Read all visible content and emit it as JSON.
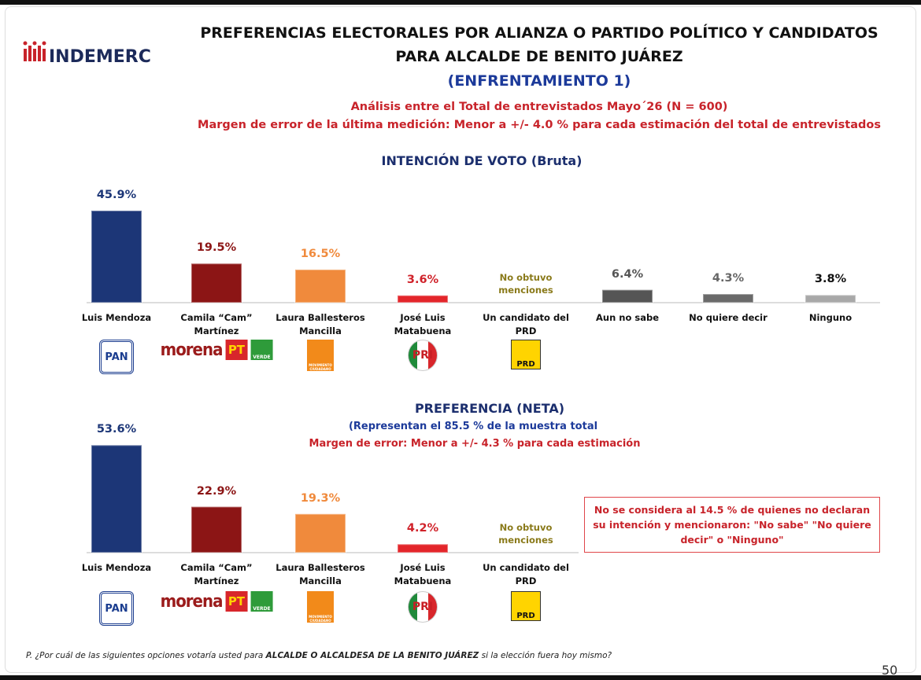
{
  "header": {
    "brand": "INDEMERC",
    "title_line1": "PREFERENCIAS ELECTORALES POR ALIANZA O PARTIDO POLÍTICO Y CANDIDATOS",
    "title_line2": "PARA ALCALDE DE BENITO JUÁREZ",
    "subtitle": "(ENFRENTAMIENTO 1)",
    "analysis": "Análisis entre el Total de entrevistados  Mayo´26 (N = 600)",
    "margin": "Margen de error de la última medición: Menor a +/- 4.0 %  para cada estimación del total de entrevistados"
  },
  "logos": [
    [
      "PAN"
    ],
    [
      "morena",
      "PT",
      "VERDE"
    ],
    [
      "MOVIMIENTO CIUDADANO"
    ],
    [
      "PRI"
    ],
    [
      "PRD"
    ]
  ],
  "chart_data": [
    {
      "type": "bar",
      "title": "INTENCIÓN DE VOTO  (Bruta)",
      "categories": [
        "Luis Mendoza",
        "Camila “Cam” Martínez",
        "Laura Ballesteros Mancilla",
        "José Luis Matabuena",
        "Un candidato del PRD",
        "Aun no sabe",
        "No quiere decir",
        "Ninguno"
      ],
      "values": [
        45.9,
        19.5,
        16.5,
        3.6,
        null,
        6.4,
        4.3,
        3.8
      ],
      "value_labels": [
        "45.9%",
        "19.5%",
        "16.5%",
        "3.6%",
        "No obtuvo menciones",
        "6.4%",
        "4.3%",
        "3.8%"
      ],
      "colors": [
        "#1c3677",
        "#8c1515",
        "#f08a3c",
        "#e3262b",
        "#c9b000",
        "#555555",
        "#6a6a6a",
        "#a8a8a8"
      ],
      "label_colors": [
        "#1c3677",
        "#8c1515",
        "#f08a3c",
        "#d0222a",
        "#8a7a1a",
        "#555555",
        "#666666",
        "#111111"
      ]
    },
    {
      "type": "bar",
      "title": "PREFERENCIA (NETA)",
      "subtitle": "(Representan el  85.5 % de la muestra total",
      "margin": "Margen de error: Menor a +/- 4.3 %  para cada estimación",
      "note": "No se considera al 14.5 % de  quienes no declaran su intención  y mencionaron:  \"No sabe\" \"No quiere decir\" o \"Ninguno\"",
      "categories": [
        "Luis Mendoza",
        "Camila “Cam” Martínez",
        "Laura Ballesteros Mancilla",
        "José Luis Matabuena",
        "Un candidato del PRD"
      ],
      "values": [
        53.6,
        22.9,
        19.3,
        4.2,
        null
      ],
      "value_labels": [
        "53.6%",
        "22.9%",
        "19.3%",
        "4.2%",
        "No obtuvo menciones"
      ],
      "colors": [
        "#1c3677",
        "#8c1515",
        "#f08a3c",
        "#e3262b",
        "#c9b000"
      ],
      "label_colors": [
        "#1c3677",
        "#8c1515",
        "#f08a3c",
        "#d0222a",
        "#8a7a1a"
      ]
    }
  ],
  "footer": {
    "question_start": "P. ¿Por cuál de las siguientes opciones votaría usted para ",
    "question_bold": "ALCALDE O ALCALDESA DE LA BENITO JUÁREZ",
    "question_end": " si la elección fuera hoy mismo?",
    "page": "50"
  }
}
